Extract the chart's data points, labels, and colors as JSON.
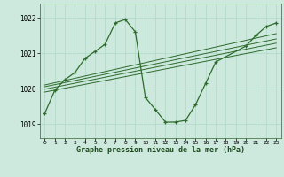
{
  "title": "Graphe pression niveau de la mer (hPa)",
  "bg_color": "#cde8dc",
  "grid_color": "#b0d8c8",
  "line_color": "#2d6b2d",
  "ylim": [
    1018.6,
    1022.4
  ],
  "xlim": [
    -0.5,
    23.5
  ],
  "yticks": [
    1019,
    1020,
    1021,
    1022
  ],
  "xticks": [
    0,
    1,
    2,
    3,
    4,
    5,
    6,
    7,
    8,
    9,
    10,
    11,
    12,
    13,
    14,
    15,
    16,
    17,
    18,
    19,
    20,
    21,
    22,
    23
  ],
  "main_x": [
    0,
    1,
    2,
    3,
    4,
    5,
    6,
    7,
    8,
    9,
    10,
    11,
    12,
    13,
    14,
    15,
    16,
    17,
    20,
    21,
    22,
    23
  ],
  "main_y": [
    1019.3,
    1019.95,
    1020.25,
    1020.45,
    1020.85,
    1021.05,
    1021.25,
    1021.85,
    1021.95,
    1021.6,
    1019.75,
    1019.4,
    1019.05,
    1019.05,
    1019.1,
    1019.55,
    1020.15,
    1020.75,
    1021.2,
    1021.5,
    1021.75,
    1021.85
  ],
  "trends": [
    {
      "x": [
        0,
        23
      ],
      "y": [
        1020.1,
        1021.55
      ]
    },
    {
      "x": [
        0,
        23
      ],
      "y": [
        1020.05,
        1021.4
      ]
    },
    {
      "x": [
        0,
        23
      ],
      "y": [
        1019.98,
        1021.28
      ]
    },
    {
      "x": [
        0,
        23
      ],
      "y": [
        1019.9,
        1021.15
      ]
    }
  ]
}
